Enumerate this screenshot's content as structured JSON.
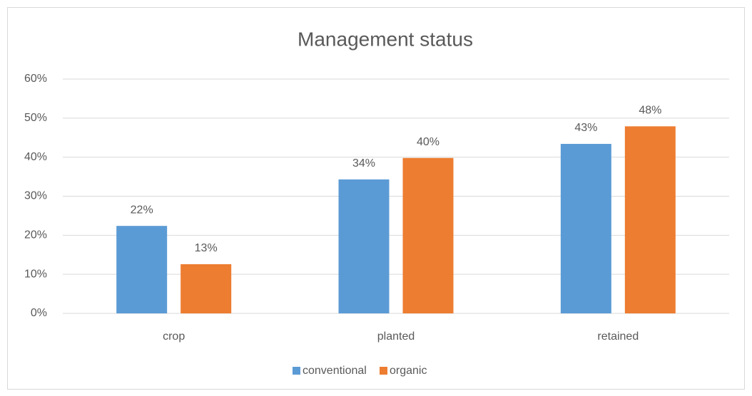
{
  "chart_data": {
    "type": "bar",
    "title": "Management status",
    "categories": [
      "crop",
      "planted",
      "retained"
    ],
    "series": [
      {
        "name": "conventional",
        "color": "#5b9bd5",
        "values": [
          22.4,
          34.3,
          43.4
        ],
        "value_labels": [
          "22%",
          "34%",
          "43%"
        ]
      },
      {
        "name": "organic",
        "color": "#ed7d31",
        "values": [
          12.6,
          39.8,
          47.9
        ],
        "value_labels": [
          "13%",
          "40%",
          "48%"
        ]
      }
    ],
    "ylim": [
      0,
      60
    ],
    "yticks": [
      {
        "value": 0,
        "label": "0%"
      },
      {
        "value": 10,
        "label": "10%"
      },
      {
        "value": 20,
        "label": "20%"
      },
      {
        "value": 30,
        "label": "30%"
      },
      {
        "value": 40,
        "label": "40%"
      },
      {
        "value": 50,
        "label": "50%"
      },
      {
        "value": 60,
        "label": "60%"
      }
    ],
    "grid": true,
    "legend": "bottom"
  }
}
